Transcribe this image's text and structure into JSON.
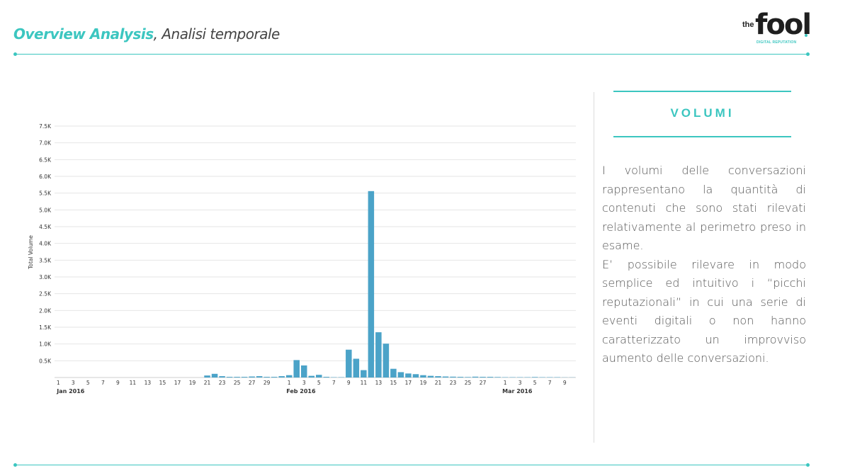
{
  "header": {
    "title_strong": "Overview Analysis",
    "title_rest": ", Analisi temporale",
    "logo": {
      "the": "the",
      "word": "fool",
      "sub": "DIGITAL REPUTATION"
    }
  },
  "sidebar": {
    "heading": "VOLUMI",
    "paragraph1": "I volumi delle conversazioni rappresentano la quantità di contenuti che sono stati rilevati relativamente al perimetro preso in esame.",
    "paragraph2": "E’ possibile rilevare in modo semplice ed intuitivo i “picchi reputazionali” in cui una serie di eventi digitali o non hanno caratterizzato un improvviso aumento delle conversazioni."
  },
  "colors": {
    "accent": "#3cc6c0",
    "bar": "#4ba3c8",
    "grid": "#e6e6e6"
  },
  "chart_data": {
    "type": "bar",
    "ylabel": "Total Volume",
    "ylim": [
      0,
      7500
    ],
    "y_ticks": [
      "0.5K",
      "1.0K",
      "1.5K",
      "2.0K",
      "2.5K",
      "3.0K",
      "3.5K",
      "4.0K",
      "4.5K",
      "5.0K",
      "5.5K",
      "6.0K",
      "6.5K",
      "7.0K",
      "7.5K"
    ],
    "x_tick_labels": [
      "1",
      "3",
      "5",
      "7",
      "9",
      "11",
      "13",
      "15",
      "17",
      "19",
      "21",
      "23",
      "25",
      "27",
      "29",
      "1",
      "3",
      "5",
      "7",
      "9",
      "11",
      "13",
      "15",
      "17",
      "19",
      "21",
      "23",
      "25",
      "27",
      "1",
      "3",
      "5",
      "7",
      "9"
    ],
    "month_labels": [
      "Jan 2016",
      "Feb 2016",
      "Mar 2016"
    ],
    "grid": true,
    "categories": [
      "2016-01-01",
      "2016-01-02",
      "2016-01-03",
      "2016-01-04",
      "2016-01-05",
      "2016-01-06",
      "2016-01-07",
      "2016-01-08",
      "2016-01-09",
      "2016-01-10",
      "2016-01-11",
      "2016-01-12",
      "2016-01-13",
      "2016-01-14",
      "2016-01-15",
      "2016-01-16",
      "2016-01-17",
      "2016-01-18",
      "2016-01-19",
      "2016-01-20",
      "2016-01-21",
      "2016-01-22",
      "2016-01-23",
      "2016-01-24",
      "2016-01-25",
      "2016-01-26",
      "2016-01-27",
      "2016-01-28",
      "2016-01-29",
      "2016-01-30",
      "2016-01-31",
      "2016-02-01",
      "2016-02-02",
      "2016-02-03",
      "2016-02-04",
      "2016-02-05",
      "2016-02-06",
      "2016-02-07",
      "2016-02-08",
      "2016-02-09",
      "2016-02-10",
      "2016-02-11",
      "2016-02-12",
      "2016-02-13",
      "2016-02-14",
      "2016-02-15",
      "2016-02-16",
      "2016-02-17",
      "2016-02-18",
      "2016-02-19",
      "2016-02-20",
      "2016-02-21",
      "2016-02-22",
      "2016-02-23",
      "2016-02-24",
      "2016-02-25",
      "2016-02-26",
      "2016-02-27",
      "2016-02-28",
      "2016-02-29",
      "2016-03-01",
      "2016-03-02",
      "2016-03-03",
      "2016-03-04",
      "2016-03-05",
      "2016-03-06",
      "2016-03-07",
      "2016-03-08",
      "2016-03-09",
      "2016-03-10"
    ],
    "values": [
      0,
      0,
      0,
      0,
      0,
      0,
      0,
      0,
      0,
      0,
      0,
      0,
      0,
      0,
      0,
      0,
      0,
      0,
      0,
      0,
      60,
      110,
      40,
      20,
      20,
      20,
      30,
      40,
      20,
      20,
      40,
      70,
      520,
      360,
      50,
      80,
      20,
      10,
      10,
      830,
      560,
      220,
      5560,
      1350,
      1010,
      260,
      160,
      120,
      100,
      70,
      50,
      40,
      30,
      25,
      20,
      15,
      25,
      20,
      20,
      15,
      10,
      10,
      10,
      10,
      15,
      10,
      10,
      10,
      5,
      5
    ]
  }
}
